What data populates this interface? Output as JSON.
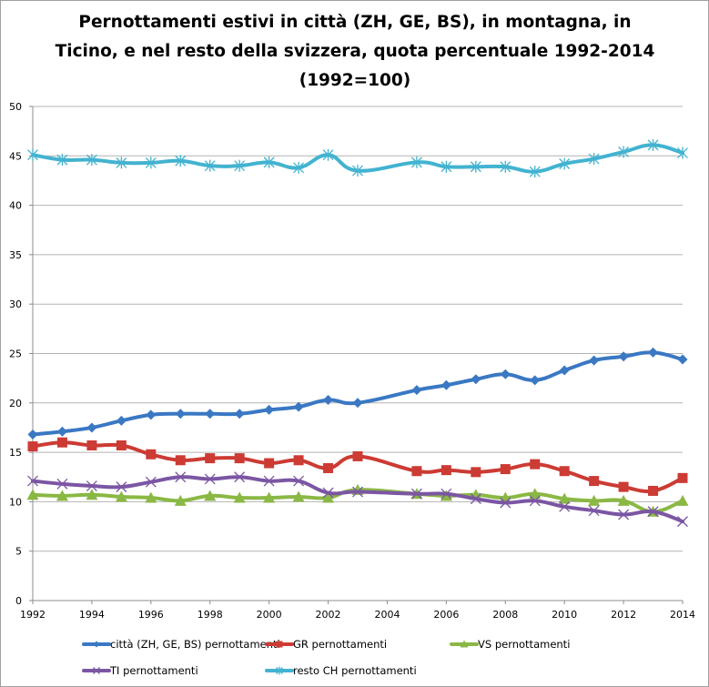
{
  "chart_data": {
    "type": "line",
    "title_lines": [
      "Pernottamenti estivi in città (ZH, GE, BS), in  montagna, in",
      "Ticino, e nel resto della svizzera, quota percentuale 1992-2014",
      "(1992=100)"
    ],
    "xlabel": "",
    "ylabel": "",
    "xlim": [
      1992,
      2014
    ],
    "ylim": [
      0,
      50
    ],
    "x_ticks": [
      1992,
      1994,
      1996,
      1998,
      2000,
      2002,
      2004,
      2006,
      2008,
      2010,
      2012,
      2014
    ],
    "y_ticks": [
      0,
      5,
      10,
      15,
      20,
      25,
      30,
      35,
      40,
      45,
      50
    ],
    "grid": "horizontal",
    "legend_position": "bottom",
    "x": [
      1992,
      1993,
      1994,
      1995,
      1996,
      1997,
      1998,
      1999,
      2000,
      2001,
      2002,
      2003,
      2005,
      2006,
      2007,
      2008,
      2009,
      2010,
      2011,
      2012,
      2013,
      2014
    ],
    "series": [
      {
        "name": "città (ZH, GE, BS) pernottamenti",
        "color": "#3a78c3",
        "marker": "diamond",
        "values": [
          16.8,
          17.1,
          17.5,
          18.2,
          18.8,
          18.9,
          18.9,
          18.9,
          19.3,
          19.6,
          20.3,
          20.0,
          21.3,
          21.8,
          22.4,
          22.9,
          22.3,
          23.3,
          24.3,
          24.7,
          25.1,
          24.4
        ]
      },
      {
        "name": "GR pernottamenti",
        "color": "#cc3b34",
        "marker": "square",
        "values": [
          15.6,
          16.0,
          15.7,
          15.7,
          14.8,
          14.2,
          14.4,
          14.4,
          13.9,
          14.2,
          13.4,
          14.6,
          13.1,
          13.2,
          13.0,
          13.3,
          13.8,
          13.1,
          12.1,
          11.5,
          11.1,
          12.4
        ]
      },
      {
        "name": "VS pernottamenti",
        "color": "#8ab844",
        "marker": "triangle",
        "values": [
          10.7,
          10.6,
          10.7,
          10.5,
          10.4,
          10.1,
          10.6,
          10.4,
          10.4,
          10.5,
          10.4,
          11.2,
          10.8,
          10.6,
          10.7,
          10.4,
          10.8,
          10.3,
          10.1,
          10.1,
          9.0,
          10.1
        ]
      },
      {
        "name": "TI pernottamenti",
        "color": "#7b56a3",
        "marker": "x",
        "values": [
          12.1,
          11.8,
          11.6,
          11.5,
          12.0,
          12.5,
          12.3,
          12.5,
          12.1,
          12.1,
          10.9,
          11.0,
          10.8,
          10.8,
          10.3,
          9.9,
          10.1,
          9.5,
          9.1,
          8.7,
          9.0,
          8.0
        ]
      },
      {
        "name": "resto CH pernottamenti",
        "color": "#42b3d0",
        "marker": "asterisk",
        "values": [
          45.1,
          44.6,
          44.6,
          44.3,
          44.3,
          44.5,
          44.0,
          44.0,
          44.35,
          43.8,
          45.1,
          43.5,
          44.35,
          43.9,
          43.9,
          43.9,
          43.4,
          44.2,
          44.7,
          45.4,
          46.1,
          45.3
        ]
      }
    ]
  }
}
